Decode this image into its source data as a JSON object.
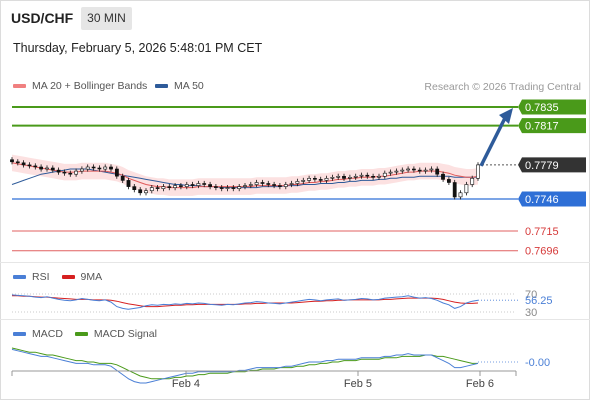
{
  "header": {
    "symbol": "USD/CHF",
    "timeframe": "30 MIN",
    "timestamp": "Thursday, February 5, 2026 5:48:01 PM CET"
  },
  "price_legend": {
    "bollinger_label": "MA 20 + Bollinger Bands",
    "ma50_label": "MA 50",
    "bollinger_color": "#f08080",
    "ma50_color": "#2e5b9a"
  },
  "credit": "Research © 2026 Trading Central",
  "rsi_legend": {
    "rsi_label": "RSI",
    "ma_label": "9MA",
    "rsi_color": "#4a7fd6",
    "ma_color": "#d62020"
  },
  "macd_legend": {
    "macd_label": "MACD",
    "signal_label": "MACD Signal",
    "macd_color": "#4a7fd6",
    "signal_color": "#4a9a1a"
  },
  "chart_data": [
    {
      "type": "candlestick",
      "panel": "price",
      "ylim": [
        0.768,
        0.7845
      ],
      "x_ticks": [
        "Feb 4",
        "Feb 5",
        "Feb 6"
      ],
      "levels": [
        {
          "label": "0.7835",
          "value": 0.7835,
          "kind": "resistance",
          "color": "#4a9a1a"
        },
        {
          "label": "0.7817",
          "value": 0.7817,
          "kind": "resistance",
          "color": "#4a9a1a"
        },
        {
          "label": "0.7779",
          "value": 0.7779,
          "kind": "current",
          "color": "#333333"
        },
        {
          "label": "0.7746",
          "value": 0.7746,
          "kind": "pivot",
          "color": "#2e6fd6"
        },
        {
          "label": "0.7715",
          "value": 0.7715,
          "kind": "support",
          "color": "#e06060"
        },
        {
          "label": "0.7696",
          "value": 0.7696,
          "kind": "support",
          "color": "#e06060"
        }
      ],
      "close": [
        0.7782,
        0.7781,
        0.7779,
        0.7778,
        0.7777,
        0.7775,
        0.7776,
        0.7774,
        0.7772,
        0.7771,
        0.777,
        0.7773,
        0.7775,
        0.7777,
        0.7776,
        0.7775,
        0.7777,
        0.7775,
        0.7768,
        0.7764,
        0.7758,
        0.7755,
        0.7752,
        0.7754,
        0.7757,
        0.7756,
        0.7758,
        0.7757,
        0.7759,
        0.7758,
        0.776,
        0.7759,
        0.7761,
        0.776,
        0.7758,
        0.7757,
        0.7756,
        0.7757,
        0.7756,
        0.7758,
        0.7759,
        0.776,
        0.7762,
        0.7761,
        0.776,
        0.7759,
        0.7758,
        0.776,
        0.7761,
        0.7763,
        0.7764,
        0.7766,
        0.7765,
        0.7764,
        0.7766,
        0.7767,
        0.7768,
        0.7766,
        0.7767,
        0.7768,
        0.7769,
        0.7768,
        0.7767,
        0.7768,
        0.7771,
        0.7772,
        0.7773,
        0.7774,
        0.7775,
        0.7774,
        0.7773,
        0.7774,
        0.7775,
        0.777,
        0.7765,
        0.7762,
        0.7748,
        0.7752,
        0.776,
        0.7766,
        0.7779
      ],
      "ma20": [
        0.7781,
        0.778,
        0.7779,
        0.7778,
        0.7777,
        0.7776,
        0.7775,
        0.7774,
        0.7773,
        0.7772,
        0.7772,
        0.7772,
        0.7773,
        0.7773,
        0.7773,
        0.7773,
        0.7773,
        0.7772,
        0.7771,
        0.7769,
        0.7766,
        0.7764,
        0.7762,
        0.776,
        0.7759,
        0.7758,
        0.7758,
        0.7757,
        0.7757,
        0.7757,
        0.7757,
        0.7757,
        0.7758,
        0.7758,
        0.7758,
        0.7758,
        0.7758,
        0.7758,
        0.7758,
        0.7758,
        0.7758,
        0.7758,
        0.7759,
        0.7759,
        0.7759,
        0.7759,
        0.7759,
        0.7759,
        0.776,
        0.776,
        0.7761,
        0.7762,
        0.7762,
        0.7763,
        0.7763,
        0.7764,
        0.7765,
        0.7765,
        0.7766,
        0.7766,
        0.7767,
        0.7767,
        0.7767,
        0.7768,
        0.7768,
        0.7769,
        0.777,
        0.7771,
        0.7772,
        0.7772,
        0.7773,
        0.7773,
        0.7773,
        0.7773,
        0.7772,
        0.7771,
        0.7769,
        0.7768,
        0.7767,
        0.7767,
        0.7768
      ],
      "ma50": [
        0.776,
        0.7762,
        0.7764,
        0.7766,
        0.7768,
        0.777,
        0.7771,
        0.7772,
        0.7773,
        0.7774,
        0.7775,
        0.7775,
        0.7775,
        0.7775,
        0.7774,
        0.7773,
        0.7772,
        0.7771,
        0.777,
        0.7769,
        0.7768,
        0.7767,
        0.7766,
        0.7765,
        0.7764,
        0.7763,
        0.7762,
        0.7761,
        0.776,
        0.776,
        0.7759,
        0.7759,
        0.7759,
        0.7758,
        0.7758,
        0.7758,
        0.7757,
        0.7757,
        0.7757,
        0.7757,
        0.7757,
        0.7757,
        0.7757,
        0.7758,
        0.7758,
        0.7758,
        0.7758,
        0.7759,
        0.7759,
        0.7759,
        0.776,
        0.776,
        0.776,
        0.7761,
        0.7761,
        0.7761,
        0.7762,
        0.7762,
        0.7763,
        0.7763,
        0.7764,
        0.7764,
        0.7764,
        0.7765,
        0.7765,
        0.7766,
        0.7766,
        0.7767,
        0.7767,
        0.7767,
        0.7768,
        0.7768,
        0.7768,
        0.7768,
        0.7768,
        0.7768,
        0.7767,
        0.7767,
        0.7767,
        0.7767,
        0.7767
      ],
      "band_width": 0.0008
    },
    {
      "type": "line",
      "panel": "rsi",
      "ylim": [
        28,
        72
      ],
      "ticks": [
        "70",
        "30"
      ],
      "last_label": "56.25",
      "rsi": [
        68,
        67,
        66,
        65,
        63,
        62,
        64,
        61,
        58,
        56,
        55,
        57,
        60,
        58,
        56,
        55,
        57,
        52,
        42,
        38,
        36,
        38,
        40,
        44,
        46,
        45,
        47,
        46,
        48,
        47,
        49,
        48,
        50,
        49,
        47,
        46,
        45,
        47,
        46,
        48,
        50,
        51,
        53,
        52,
        50,
        49,
        48,
        50,
        52,
        54,
        56,
        58,
        57,
        55,
        57,
        58,
        59,
        56,
        57,
        58,
        60,
        59,
        57,
        58,
        61,
        62,
        63,
        64,
        66,
        63,
        61,
        62,
        60,
        56,
        50,
        46,
        38,
        42,
        50,
        54,
        56.25
      ],
      "ma": [
        66,
        66,
        65,
        65,
        64,
        63,
        63,
        62,
        61,
        60,
        59,
        58,
        58,
        58,
        57,
        57,
        57,
        56,
        54,
        51,
        48,
        46,
        44,
        42,
        42,
        42,
        43,
        44,
        45,
        45,
        46,
        46,
        47,
        47,
        47,
        47,
        47,
        47,
        47,
        47,
        48,
        48,
        49,
        49,
        50,
        50,
        50,
        50,
        50,
        51,
        52,
        53,
        54,
        54,
        55,
        55,
        56,
        56,
        57,
        57,
        57,
        57,
        57,
        57,
        58,
        58,
        59,
        60,
        61,
        61,
        61,
        61,
        61,
        60,
        58,
        55,
        52,
        50,
        49,
        49,
        50
      ]
    },
    {
      "type": "line",
      "panel": "macd",
      "last_label": "-0.00",
      "macd": [
        0.0009,
        0.0008,
        0.0007,
        0.0006,
        0.0005,
        0.0004,
        0.0004,
        0.0003,
        0.0002,
        0.0001,
        0.0,
        -0.0001,
        -0.0001,
        -0.0001,
        -0.0002,
        -0.0002,
        -0.0002,
        -0.0003,
        -0.0006,
        -0.0009,
        -0.0012,
        -0.0014,
        -0.0015,
        -0.0015,
        -0.0014,
        -0.0013,
        -0.0012,
        -0.0011,
        -0.001,
        -0.0009,
        -0.0008,
        -0.0008,
        -0.0007,
        -0.0007,
        -0.0007,
        -0.0007,
        -0.0007,
        -0.0007,
        -0.0007,
        -0.0006,
        -0.0006,
        -0.0005,
        -0.0004,
        -0.0004,
        -0.0004,
        -0.0004,
        -0.0004,
        -0.0003,
        -0.0003,
        -0.0002,
        -0.0001,
        0.0,
        0.0,
        0.0,
        0.0001,
        0.0001,
        0.0002,
        0.0002,
        0.0002,
        0.0002,
        0.0003,
        0.0003,
        0.0003,
        0.0003,
        0.0004,
        0.0004,
        0.0005,
        0.0005,
        0.0006,
        0.0005,
        0.0005,
        0.0005,
        0.0005,
        0.0003,
        0.0001,
        -0.0001,
        -0.0004,
        -0.0004,
        -0.0003,
        -0.0002,
        -0.0001
      ],
      "signal": [
        0.001,
        0.0009,
        0.0008,
        0.0007,
        0.0007,
        0.0006,
        0.0005,
        0.0005,
        0.0004,
        0.0003,
        0.0002,
        0.0001,
        0.0001,
        0.0,
        0.0,
        -0.0001,
        -0.0001,
        -0.0001,
        -0.0002,
        -0.0004,
        -0.0006,
        -0.0008,
        -0.001,
        -0.0011,
        -0.0012,
        -0.0012,
        -0.0012,
        -0.0012,
        -0.0011,
        -0.0011,
        -0.001,
        -0.001,
        -0.0009,
        -0.0009,
        -0.0008,
        -0.0008,
        -0.0008,
        -0.0008,
        -0.0007,
        -0.0007,
        -0.0007,
        -0.0006,
        -0.0006,
        -0.0005,
        -0.0005,
        -0.0005,
        -0.0004,
        -0.0004,
        -0.0004,
        -0.0003,
        -0.0003,
        -0.0002,
        -0.0002,
        -0.0001,
        -0.0001,
        0.0,
        0.0,
        0.0001,
        0.0001,
        0.0001,
        0.0002,
        0.0002,
        0.0002,
        0.0002,
        0.0003,
        0.0003,
        0.0003,
        0.0004,
        0.0004,
        0.0004,
        0.0004,
        0.0005,
        0.0005,
        0.0004,
        0.0004,
        0.0003,
        0.0002,
        0.0001,
        0.0,
        -0.0001,
        -0.0001
      ]
    }
  ]
}
